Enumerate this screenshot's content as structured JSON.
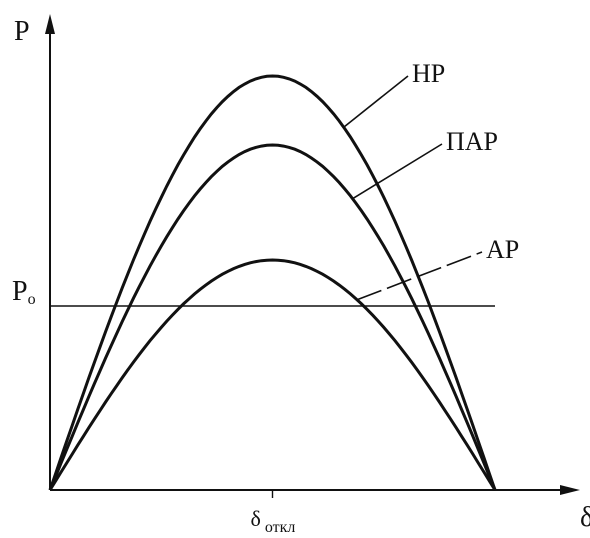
{
  "chart_data": {
    "type": "line",
    "title": "",
    "ylabel": "P",
    "xlabel": "δ",
    "xlim": [
      0,
      1
    ],
    "ylim": [
      0,
      1
    ],
    "reference_line": {
      "label": "P",
      "label_subscript": "o",
      "y": 0.4
    },
    "x_tick": {
      "label": "δ",
      "label_subscript": "откл",
      "x": 0.5
    },
    "series": [
      {
        "name": "НР",
        "peak": 0.9,
        "peak_x": 0.5
      },
      {
        "name": "ПАР",
        "peak": 0.75,
        "peak_x": 0.5
      },
      {
        "name": "АР",
        "peak": 0.5,
        "peak_x": 0.5
      }
    ],
    "grid": false,
    "legend": "inline-leaders"
  }
}
